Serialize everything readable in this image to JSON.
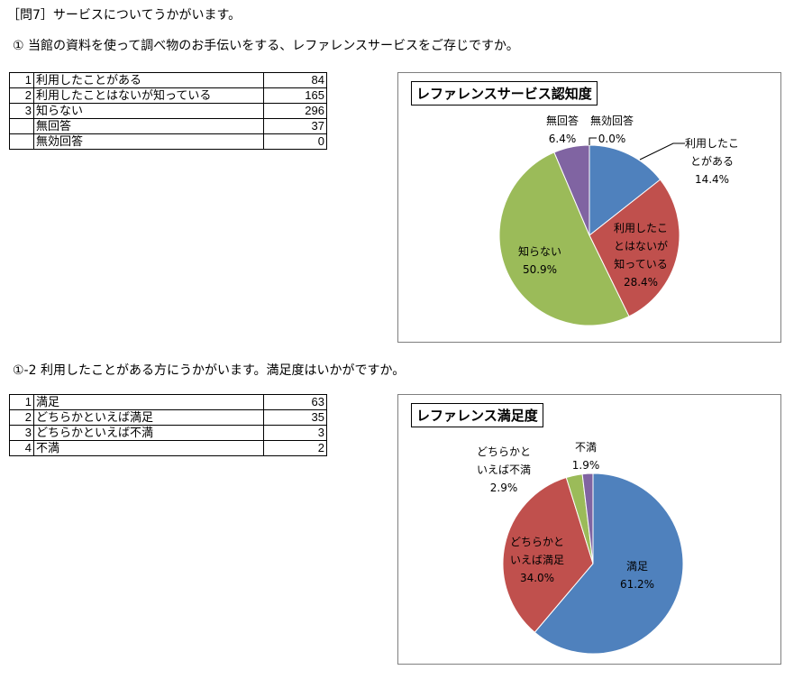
{
  "header": {
    "title": "［問7］サービスについてうかがいます。"
  },
  "q1": {
    "question": "① 当館の資料を使って調べ物のお手伝いをする、レファレンスサービスをご存じですか。",
    "rows": [
      {
        "num": "1",
        "label": "利用したことがある",
        "value": "84"
      },
      {
        "num": "2",
        "label": "利用したことはないが知っている",
        "value": "165"
      },
      {
        "num": "3",
        "label": "知らない",
        "value": "296"
      },
      {
        "num": "",
        "label": "無回答",
        "value": "37"
      },
      {
        "num": "",
        "label": "無効回答",
        "value": "0"
      }
    ]
  },
  "q2": {
    "question": "①-2 利用したことがある方にうかがいます。満足度はいかがですか。",
    "rows": [
      {
        "num": "1",
        "label": "満足",
        "value": "63"
      },
      {
        "num": "2",
        "label": "どちらかといえば満足",
        "value": "35"
      },
      {
        "num": "3",
        "label": "どちらかといえば不満",
        "value": "3"
      },
      {
        "num": "4",
        "label": "不満",
        "value": "2"
      }
    ]
  },
  "chart_data": [
    {
      "type": "pie",
      "title": "レファレンスサービス認知度",
      "slices": [
        {
          "label": [
            "利用したこ",
            "とがある"
          ],
          "value": 14.4,
          "pct": "14.4%",
          "color": "#4f81bd"
        },
        {
          "label": [
            "利用したこ",
            "とはないが",
            "知っている"
          ],
          "value": 28.4,
          "pct": "28.4%",
          "color": "#c0504d"
        },
        {
          "label": [
            "知らない"
          ],
          "value": 50.9,
          "pct": "50.9%",
          "color": "#9bbb59"
        },
        {
          "label": [
            "無回答"
          ],
          "value": 6.4,
          "pct": "6.4%",
          "color": "#8064a2"
        },
        {
          "label": [
            "無効回答"
          ],
          "value": 0.0,
          "pct": "0.0%",
          "color": "#4bacc6"
        }
      ]
    },
    {
      "type": "pie",
      "title": "レファレンス満足度",
      "slices": [
        {
          "label": [
            "満足"
          ],
          "value": 61.2,
          "pct": "61.2%",
          "color": "#4f81bd"
        },
        {
          "label": [
            "どちらかと",
            "いえば満足"
          ],
          "value": 34.0,
          "pct": "34.0%",
          "color": "#c0504d"
        },
        {
          "label": [
            "どちらかと",
            "いえば不満"
          ],
          "value": 2.9,
          "pct": "2.9%",
          "color": "#9bbb59"
        },
        {
          "label": [
            "不満"
          ],
          "value": 1.9,
          "pct": "1.9%",
          "color": "#8064a2"
        }
      ]
    }
  ]
}
